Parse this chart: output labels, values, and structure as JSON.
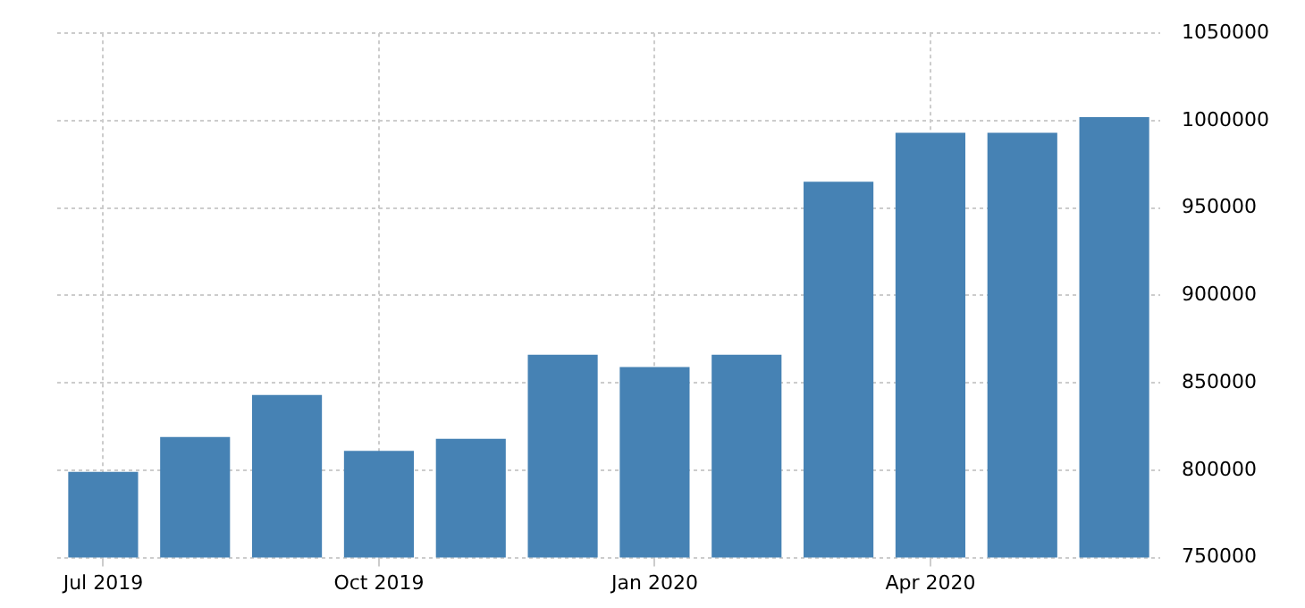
{
  "chart_data": {
    "type": "bar",
    "categories": [
      "Jul 2019",
      null,
      null,
      "Oct 2019",
      null,
      null,
      "Jan 2020",
      null,
      null,
      "Apr 2020",
      null,
      null
    ],
    "values": [
      799000,
      819000,
      843000,
      811000,
      818000,
      866000,
      859000,
      866000,
      965000,
      993000,
      993000,
      1002000
    ],
    "color": "#4682b4",
    "ylim": [
      750000,
      1050000
    ],
    "yticks": [
      750000,
      800000,
      850000,
      900000,
      950000,
      1000000,
      1050000
    ],
    "grid": true,
    "legend": false
  }
}
